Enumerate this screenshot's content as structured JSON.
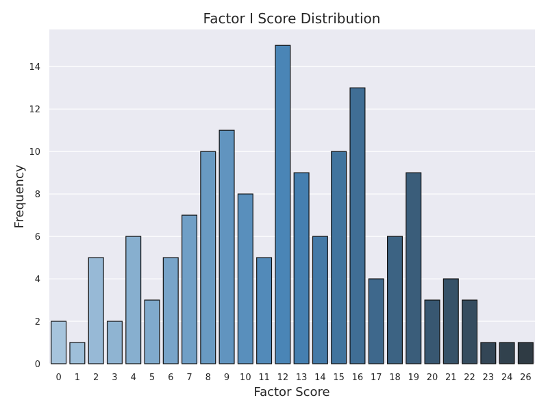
{
  "chart_data": {
    "type": "bar",
    "title": "Factor I Score Distribution",
    "xlabel": "Factor Score",
    "ylabel": "Frequency",
    "categories": [
      "0",
      "1",
      "2",
      "3",
      "4",
      "5",
      "6",
      "7",
      "8",
      "9",
      "10",
      "11",
      "12",
      "13",
      "14",
      "15",
      "16",
      "17",
      "18",
      "19",
      "20",
      "21",
      "22",
      "23",
      "24",
      "26"
    ],
    "values": [
      2,
      1,
      5,
      2,
      6,
      3,
      5,
      7,
      10,
      11,
      8,
      5,
      15,
      9,
      6,
      10,
      13,
      4,
      6,
      9,
      3,
      4,
      3,
      1,
      1,
      1
    ],
    "ylim": [
      0,
      15.75
    ],
    "yticks": [
      0,
      2,
      4,
      6,
      8,
      10,
      12,
      14
    ],
    "grid": true,
    "legend": "none",
    "style": {
      "plot_background": "#eaeaf2",
      "grid_color": "#ffffff",
      "bar_edge_color": "#111111",
      "palette_start": "#a6c4dc",
      "palette_mid": "#4682b4",
      "palette_end": "#2f3b44"
    }
  }
}
